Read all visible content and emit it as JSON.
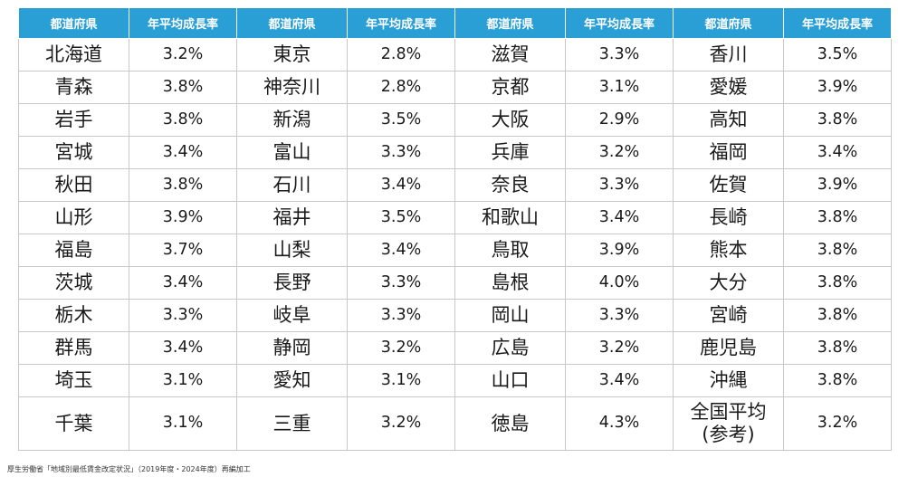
{
  "table": {
    "headers": [
      "都道府県",
      "年平均成長率",
      "都道府県",
      "年平均成長率",
      "都道府県",
      "年平均成長率",
      "都道府県",
      "年平均成長率"
    ],
    "header_color": "#2a9fd6",
    "rows": [
      [
        "北海道",
        "3.2%",
        "東京",
        "2.8%",
        "滋賀",
        "3.3%",
        "香川",
        "3.5%"
      ],
      [
        "青森",
        "3.8%",
        "神奈川",
        "2.8%",
        "京都",
        "3.1%",
        "愛媛",
        "3.9%"
      ],
      [
        "岩手",
        "3.8%",
        "新潟",
        "3.5%",
        "大阪",
        "2.9%",
        "高知",
        "3.8%"
      ],
      [
        "宮城",
        "3.4%",
        "富山",
        "3.3%",
        "兵庫",
        "3.2%",
        "福岡",
        "3.4%"
      ],
      [
        "秋田",
        "3.8%",
        "石川",
        "3.4%",
        "奈良",
        "3.3%",
        "佐賀",
        "3.9%"
      ],
      [
        "山形",
        "3.9%",
        "福井",
        "3.5%",
        "和歌山",
        "3.4%",
        "長崎",
        "3.8%"
      ],
      [
        "福島",
        "3.7%",
        "山梨",
        "3.4%",
        "鳥取",
        "3.9%",
        "熊本",
        "3.8%"
      ],
      [
        "茨城",
        "3.4%",
        "長野",
        "3.3%",
        "島根",
        "4.0%",
        "大分",
        "3.8%"
      ],
      [
        "栃木",
        "3.3%",
        "岐阜",
        "3.3%",
        "岡山",
        "3.3%",
        "宮崎",
        "3.8%"
      ],
      [
        "群馬",
        "3.4%",
        "静岡",
        "3.2%",
        "広島",
        "3.2%",
        "鹿児島",
        "3.8%"
      ],
      [
        "埼玉",
        "3.1%",
        "愛知",
        "3.1%",
        "山口",
        "3.4%",
        "沖縄",
        "3.8%"
      ],
      [
        "千葉",
        "3.1%",
        "三重",
        "3.2%",
        "徳島",
        "4.3%",
        "全国平均\n(参考)",
        "3.2%"
      ]
    ]
  },
  "source_note": "厚生労働省「地域別最低賃金改定状況」（2019年度・2024年度）再編加工"
}
